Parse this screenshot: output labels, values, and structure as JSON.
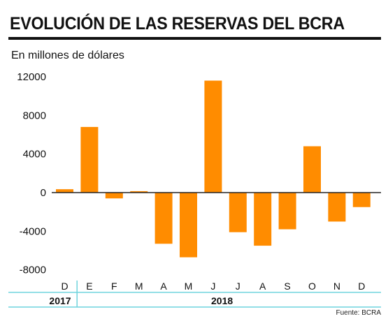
{
  "title": "EVOLUCIÓN DE LAS RESERVAS DEL BCRA",
  "subtitle": "En millones de dólares",
  "source": "Fuente: BCRA",
  "colors": {
    "bar": "#ff8c00",
    "axis": "#222222",
    "band": "#6fd3dd"
  },
  "chart_data": {
    "type": "bar",
    "categories": [
      "D",
      "E",
      "F",
      "M",
      "A",
      "M",
      "J",
      "J",
      "A",
      "S",
      "O",
      "N",
      "D"
    ],
    "values": [
      350,
      6800,
      -600,
      150,
      -5300,
      -6700,
      11600,
      -4100,
      -5500,
      -3800,
      4800,
      -3000,
      -1500
    ],
    "year_groups": [
      {
        "label": "2017",
        "span": 1
      },
      {
        "label": "2018",
        "span": 12
      }
    ],
    "yticks": [
      12000,
      8000,
      4000,
      0,
      -4000,
      -8000
    ],
    "ytick_labels": [
      "12000",
      "8000",
      "4000",
      "0",
      "-4000",
      "-8000"
    ],
    "ylim": [
      -8000,
      12000
    ],
    "ylabel": "En millones de dólares",
    "grid": false
  }
}
